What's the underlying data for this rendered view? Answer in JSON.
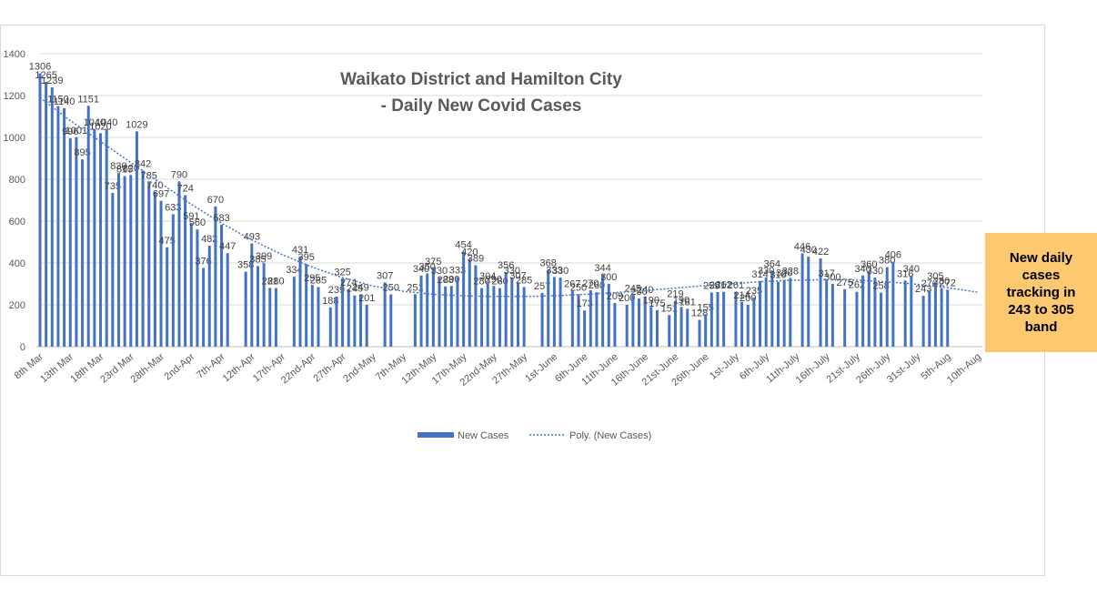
{
  "chart_data": {
    "type": "bar",
    "title": [
      "Waikato District and Hamilton City",
      "- Daily New Covid Cases"
    ],
    "categories": [
      "8th Mar",
      null,
      null,
      null,
      null,
      "13th Mar",
      null,
      null,
      null,
      null,
      "18th Mar",
      null,
      null,
      null,
      null,
      "23rd Mar",
      null,
      null,
      null,
      null,
      "28th-Mar",
      null,
      null,
      null,
      null,
      "2nd-Apr",
      null,
      null,
      null,
      null,
      "7th-Apr",
      null,
      null,
      null,
      null,
      "12th-Apr",
      null,
      null,
      null,
      null,
      "17th-Apr",
      null,
      null,
      null,
      null,
      "22nd-Apr",
      null,
      null,
      null,
      null,
      "27th-Apr",
      null,
      null,
      null,
      null,
      "2nd-May",
      null,
      null,
      null,
      null,
      "7th-May",
      null,
      null,
      null,
      null,
      "12th-May",
      null,
      null,
      null,
      null,
      "17th-May",
      null,
      null,
      null,
      null,
      "22nd-May",
      null,
      null,
      null,
      null,
      "27th-May",
      null,
      null,
      null,
      null,
      "1st-June",
      null,
      null,
      null,
      null,
      "6th-June",
      null,
      null,
      null,
      null,
      "11th-June",
      null,
      null,
      null,
      null,
      "16th-June",
      null,
      null,
      null,
      null,
      "21st-June",
      null,
      null,
      null,
      null,
      "26th-June",
      null,
      null,
      null,
      null,
      "1st-July",
      null,
      null,
      null,
      null,
      "6th-July",
      null,
      null,
      null,
      null,
      "11th-July",
      null,
      null,
      null,
      null,
      "16th-July",
      null,
      null,
      null,
      null,
      "21st-July",
      null,
      null,
      null,
      null,
      "26th-July",
      null,
      null,
      null,
      null,
      "31st-July",
      null,
      null,
      null,
      null,
      "5th-Aug",
      null,
      null,
      null,
      null,
      "10th-Aug"
    ],
    "series": [
      {
        "name": "New Cases",
        "color": "#4472c4",
        "values": [
          1306,
          1265,
          1239,
          1150,
          1140,
          996,
          1001,
          895,
          1151,
          1040,
          1020,
          1040,
          735,
          830,
          815,
          820,
          1029,
          842,
          785,
          740,
          697,
          475,
          633,
          790,
          724,
          591,
          560,
          376,
          482,
          670,
          583,
          447,
          null,
          null,
          358,
          493,
          385,
          399,
          281,
          280,
          null,
          null,
          334,
          431,
          395,
          295,
          285,
          null,
          188,
          239,
          325,
          274,
          245,
          249,
          201,
          null,
          null,
          307,
          250,
          null,
          null,
          null,
          251,
          340,
          350,
          375,
          330,
          288,
          290,
          333,
          454,
          420,
          389,
          280,
          304,
          290,
          280,
          356,
          330,
          307,
          285,
          null,
          null,
          257,
          368,
          333,
          330,
          null,
          267,
          250,
          173,
          270,
          260,
          344,
          300,
          209,
          null,
          200,
          245,
          230,
          240,
          190,
          175,
          null,
          151,
          219,
          190,
          181,
          null,
          128,
          155,
          259,
          261,
          262,
          null,
          261,
          214,
          200,
          235,
          314,
          330,
          364,
          310,
          320,
          328,
          null,
          446,
          430,
          null,
          422,
          317,
          300,
          null,
          275,
          null,
          262,
          340,
          360,
          330,
          258,
          380,
          406,
          null,
          316,
          340,
          null,
          243,
          270,
          305,
          280,
          272,
          null,
          null,
          null,
          null,
          null
        ]
      },
      {
        "name": "Poly. (New Cases)",
        "color": "#4472c4",
        "x": [
          "8th Mar",
          "13th Mar",
          "18th Mar",
          "23rd Mar",
          "28th-Mar",
          "2nd-Apr",
          "7th-Apr",
          "12th-Apr",
          "17th-Apr",
          "22nd-Apr",
          "27th-Apr",
          "2nd-May",
          "7th-May",
          "12th-May",
          "17th-May",
          "22nd-May",
          "27th-May",
          "1st-June",
          "6th-June",
          "11th-June",
          "16th-June",
          "21st-June",
          "26th-June",
          "1st-July",
          "6th-July",
          "11th-July",
          "16th-July",
          "21st-July",
          "26th-July",
          "31st-July",
          "5th-Aug",
          "10th-Aug"
        ],
        "values": [
          1190,
          1080,
          980,
          880,
          780,
          680,
          590,
          510,
          440,
          380,
          330,
          290,
          265,
          250,
          243,
          240,
          240,
          243,
          250,
          258,
          268,
          280,
          292,
          302,
          312,
          318,
          320,
          318,
          310,
          298,
          282,
          260
        ]
      }
    ],
    "ylim": [
      0,
      1400
    ],
    "yticks": [
      0,
      200,
      400,
      600,
      800,
      1000,
      1200,
      1400
    ],
    "grid": true,
    "annotation": [
      "New daily",
      "cases",
      "tracking in",
      "243 to 305",
      "band"
    ]
  }
}
